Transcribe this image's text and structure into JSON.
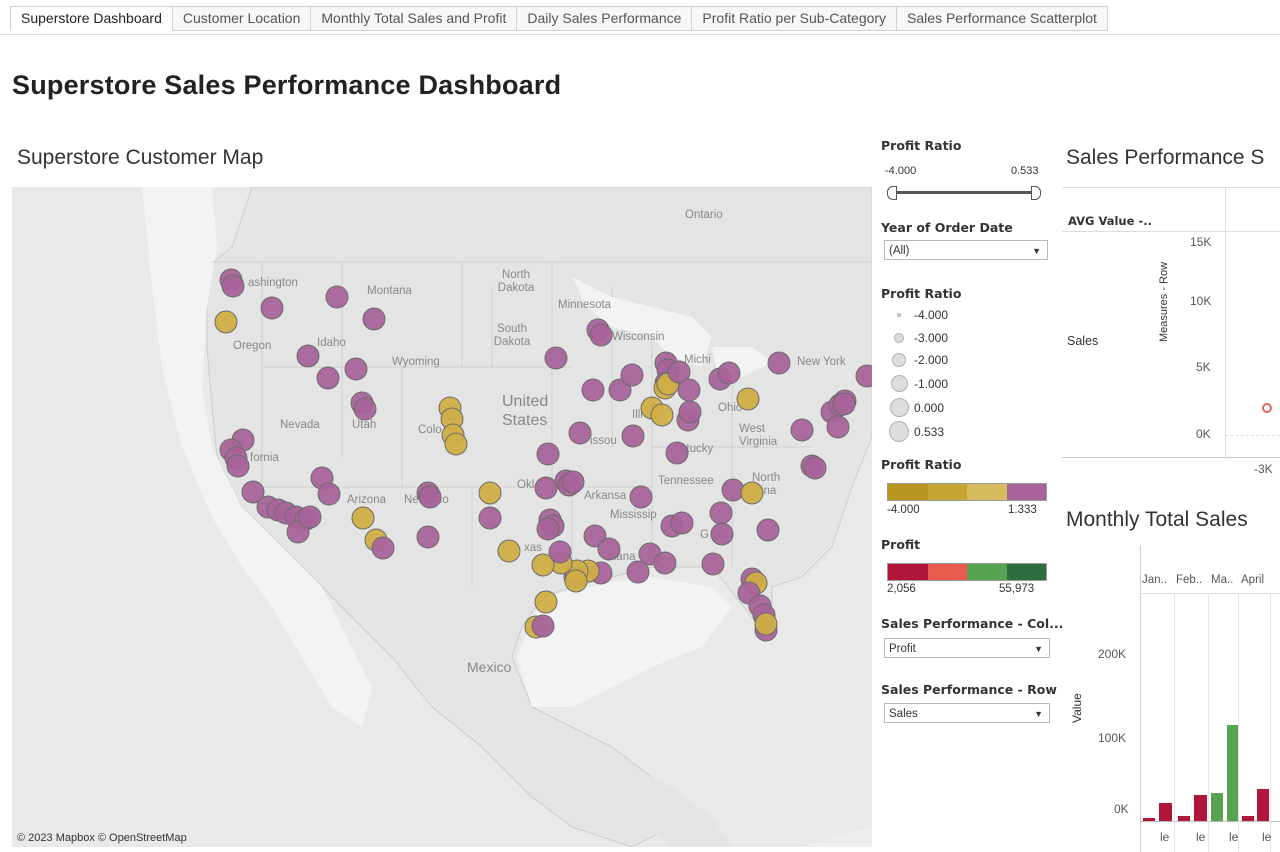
{
  "tabs": [
    "Superstore Dashboard",
    "Customer Location",
    "Monthly Total Sales and Profit",
    "Daily Sales Performance",
    "Profit Ratio per Sub-Category",
    "Sales Performance Scatterplot"
  ],
  "dashboard_title": "Superstore Sales Performance Dashboard",
  "map": {
    "title": "Superstore Customer Map",
    "attribution": "© 2023 Mapbox  © OpenStreetMap",
    "labels": {
      "ontario": "Ontario",
      "washington": "ashington",
      "montana": "Montana",
      "north_dakota": "North Dakota",
      "minnesota": "Minnesota",
      "oregon": "Oregon",
      "idaho": "Idaho",
      "south_dakota": "South Dakota",
      "wisconsin": "Wisconsin",
      "michigan": "Michi",
      "new_york": "New York",
      "wyoming": "Wyoming",
      "united_states": "United States",
      "nevada": "Nevada",
      "utah": "Utah",
      "colorado": "Colo",
      "ohio": "Ohio",
      "west_virginia": "West Virginia",
      "california": "fornia",
      "missouri": "issou",
      "kentucky": "ntucky",
      "tennessee": "Tennessee",
      "north_carolina": "North olina",
      "arizona": "Arizona",
      "new_mexico": "Ne  exico",
      "oklahoma": "Okl",
      "arkansas": "Arkansa",
      "mississippi": "Mississip",
      "texas": "xas",
      "louisiana": "siana",
      "georgia": "G   gia",
      "illinois": "Illi",
      "mexico": "Mexico"
    }
  },
  "filters": {
    "profit_ratio_slider": {
      "label": "Profit Ratio",
      "min": "-4.000",
      "max": "0.533"
    },
    "year": {
      "label": "Year of Order Date",
      "value": "(All)"
    },
    "size_legend": {
      "label": "Profit Ratio",
      "items": [
        "-4.000",
        "-3.000",
        "-2.000",
        "-1.000",
        "0.000",
        "0.533"
      ]
    },
    "color_legend": {
      "label": "Profit Ratio",
      "min": "-4.000",
      "max": "1.333",
      "colors": [
        "#b8961f",
        "#c7a534",
        "#d7bb5f",
        "#a8649a"
      ]
    },
    "profit_legend": {
      "label": "Profit",
      "min": "2,056",
      "max": "55,973",
      "colors": [
        "#b0163a",
        "#e85b4e",
        "#57a352",
        "#2f6f3f"
      ]
    },
    "col_select": {
      "label": "Sales Performance - Col...",
      "value": "Profit"
    },
    "row_select": {
      "label": "Sales Performance - Row",
      "value": "Sales"
    }
  },
  "scatter": {
    "title": "Sales Performance S",
    "header": "AVG Value -..",
    "row_header": "Sales",
    "axis_title": "Measures - Row",
    "ticks": [
      "15K",
      "10K",
      "5K",
      "0K"
    ],
    "xtick": "-3K"
  },
  "monthly": {
    "title": "Monthly Total Sales",
    "axis_title": "Value",
    "months": [
      "Jan..",
      "Feb..",
      "Ma..",
      "April"
    ],
    "ticks": [
      "200K",
      "100K",
      "0K"
    ],
    "bottom_labels": [
      "le",
      "le",
      "le",
      "le"
    ]
  },
  "colors": {
    "purple": "#a8649a",
    "gold": "#cfae44",
    "map_bg": "#efefef"
  }
}
